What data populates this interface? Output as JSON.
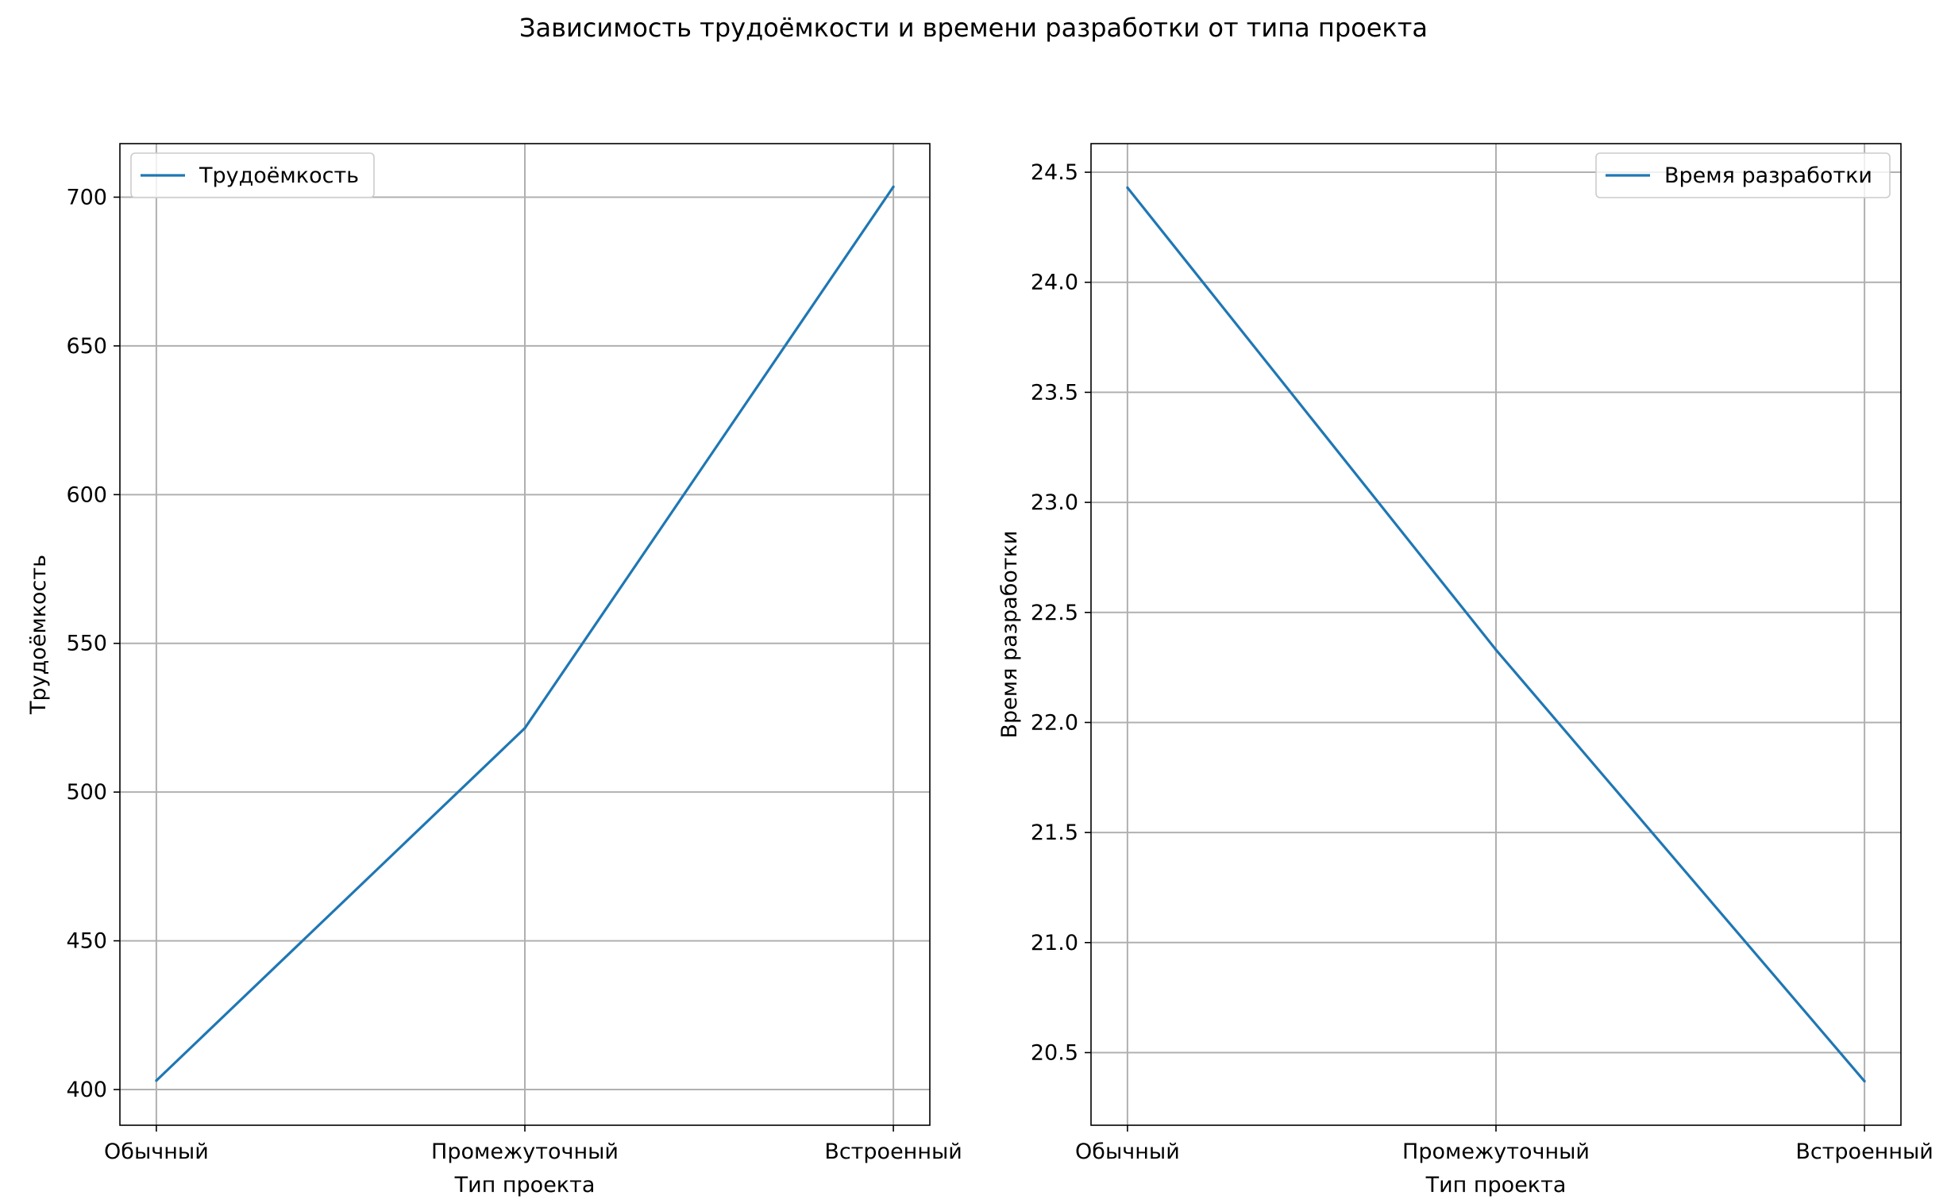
{
  "chart_data": {
    "suptitle": "Зависимость трудоёмкости и времени разработки от типа проекта",
    "line_color": "#1f77b4",
    "subplots": [
      {
        "type": "line",
        "categories": [
          "Обычный",
          "Промежуточный",
          "Встроенный"
        ],
        "series": [
          {
            "name": "Трудоёмкость",
            "values": [
              403,
              521.5,
              703.5
            ]
          }
        ],
        "xlabel": "Тип проекта",
        "ylabel": "Трудоёмкость",
        "ylim": [
          388,
          718
        ],
        "yticks": [
          400,
          450,
          500,
          550,
          600,
          650,
          700
        ],
        "ytick_labels": [
          "400",
          "450",
          "500",
          "550",
          "600",
          "650",
          "700"
        ],
        "grid": true,
        "legend_position": "upper left"
      },
      {
        "type": "line",
        "categories": [
          "Обычный",
          "Промежуточный",
          "Встроенный"
        ],
        "series": [
          {
            "name": "Время разработки",
            "values": [
              24.43,
              22.33,
              20.37
            ]
          }
        ],
        "xlabel": "Тип проекта",
        "ylabel": "Время разработки",
        "ylim": [
          20.17,
          24.63
        ],
        "yticks": [
          20.5,
          21.0,
          21.5,
          22.0,
          22.5,
          23.0,
          23.5,
          24.0,
          24.5
        ],
        "ytick_labels": [
          "20.5",
          "21.0",
          "21.5",
          "22.0",
          "22.5",
          "23.0",
          "23.5",
          "24.0",
          "24.5"
        ],
        "grid": true,
        "legend_position": "upper right"
      }
    ]
  }
}
